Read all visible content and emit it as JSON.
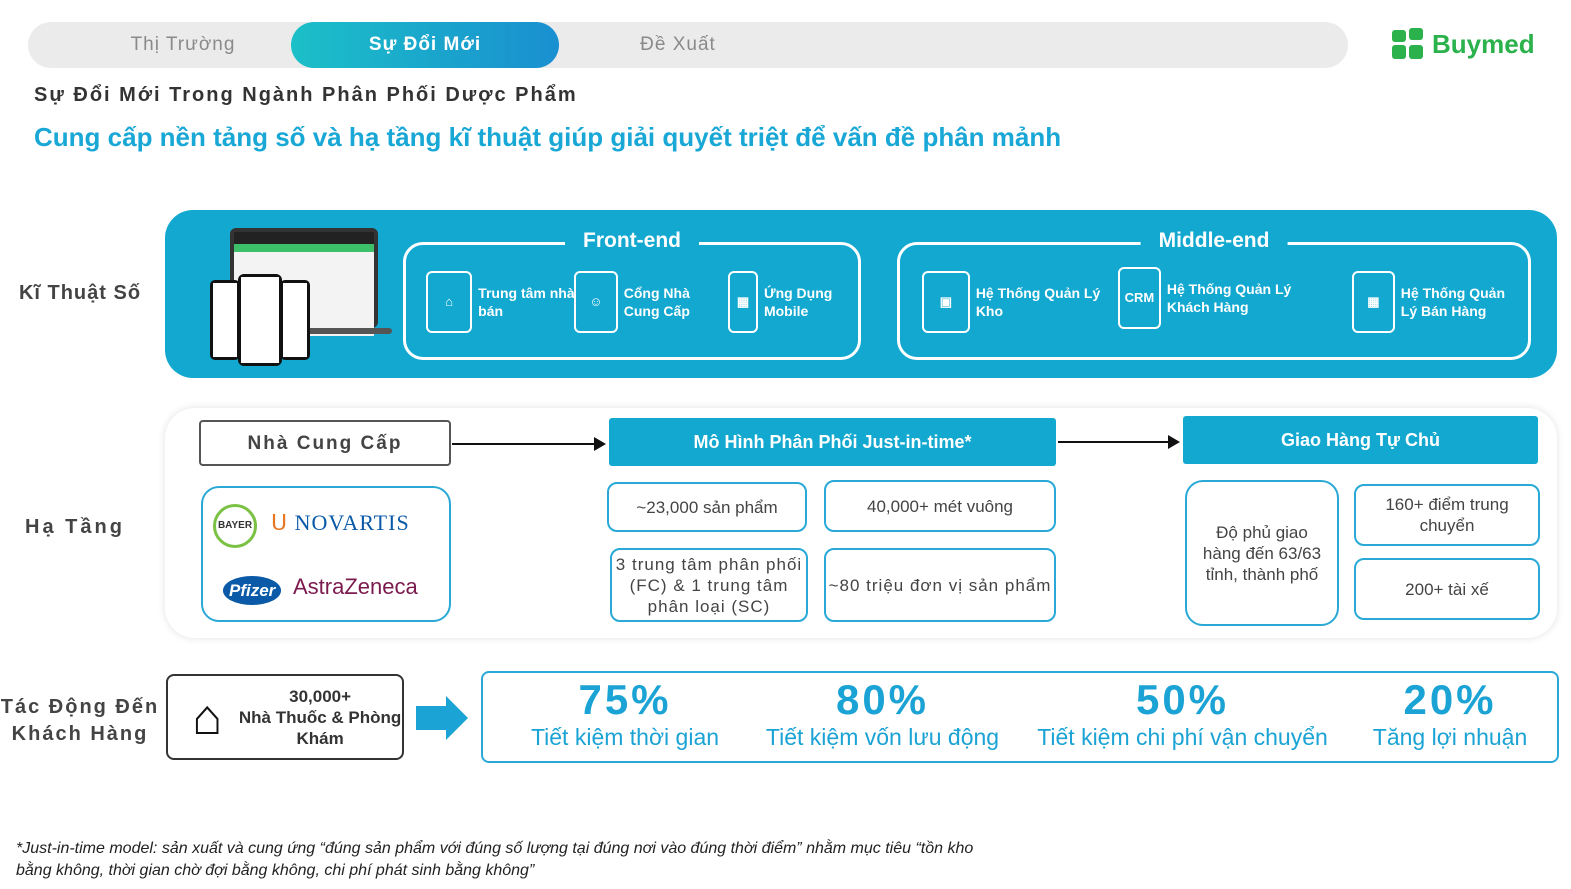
{
  "tabs": [
    "Thị Trường",
    "Sự Đổi Mới",
    "Đề Xuất"
  ],
  "active_tab": 1,
  "brand": "Buymed",
  "subtitle": "Sự Đổi Mới Trong Ngành Phân Phối Dược Phẩm",
  "headline": "Cung cấp nền tảng số và hạ tầng kĩ thuật giúp giải quyết triệt để vấn đề phân mảnh",
  "rows": {
    "digital": "Kĩ Thuật Số",
    "infra": "Hạ Tầng",
    "impact": "Tác Động Đến Khách Hàng"
  },
  "frontend": {
    "title": "Front-end",
    "items": [
      "Trung tâm nhà bán",
      "Cổng Nhà Cung Cấp",
      "Ứng Dụng Mobile"
    ]
  },
  "middleend": {
    "title": "Middle-end",
    "items": [
      "Hệ Thống Quản Lý Kho",
      "Hệ Thống Quản Lý Khách Hàng",
      "Hệ Thống Quản Lý Bán Hàng"
    ],
    "crm_label": "CRM"
  },
  "infra": {
    "supplier": "Nhà Cung Cấp",
    "partners": [
      "BAYER",
      "NOVARTIS",
      "Pfizer",
      "AstraZeneca"
    ],
    "model": "Mô Hình Phân Phối Just-in-time*",
    "delivery": "Giao Hàng Tự Chủ",
    "model_facts": [
      "~23,000 sản phẩm",
      "40,000+ mét vuông",
      "3 trung tâm phân phối (FC) & 1 trung tâm phân loại (SC)",
      "~80 triệu đơn vị sản phẩm"
    ],
    "delivery_facts": [
      "Độ phủ giao hàng đến 63/63 tỉnh, thành phố",
      "160+ điểm trung chuyển",
      "200+ tài xế"
    ]
  },
  "customers": {
    "count": "30,000+",
    "label": "Nhà Thuốc & Phòng Khám"
  },
  "stats": [
    {
      "value": "75%",
      "label": "Tiết kiệm thời gian"
    },
    {
      "value": "80%",
      "label": "Tiết kiệm vốn lưu động"
    },
    {
      "value": "50%",
      "label": "Tiết kiệm chi phí vận chuyển"
    },
    {
      "value": "20%",
      "label": "Tăng lợi nhuận"
    }
  ],
  "footnote": "*Just-in-time model: sản xuất và cung ứng “đúng sản phẩm với đúng số lượng tại đúng nơi vào đúng thời điểm” nhằm mục tiêu “tồn kho bằng không, thời gian chờ đợi bằng không, chi phí phát sinh bằng không”",
  "colors": {
    "primary": "#12a8d0",
    "brand": "#2bb24c"
  }
}
